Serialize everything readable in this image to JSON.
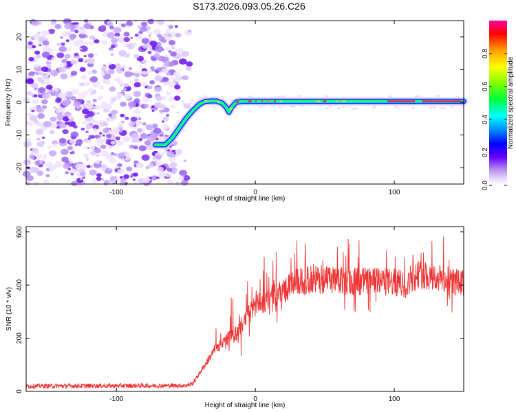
{
  "title": "S173.2026.093.05.26.C26",
  "chart_data": [
    {
      "type": "heatmap",
      "name": "spectrogram",
      "xlabel": "Height of straight line (km)",
      "ylabel": "Frequency (Hz)",
      "xlim": [
        -165,
        150
      ],
      "ylim": [
        -25,
        25
      ],
      "xticks": [
        -100,
        0,
        100
      ],
      "yticks": [
        -20,
        -10,
        0,
        10,
        20
      ],
      "colorbar": {
        "label": "Normalized spectral amplitude",
        "range": [
          0,
          1
        ],
        "ticks": [
          0.0,
          0.2,
          0.4,
          0.6,
          0.8
        ],
        "tick_labels": [
          "0.0",
          "0.2",
          "0.4",
          "0.6",
          "0.8"
        ]
      },
      "ridge": {
        "x": [
          -72,
          -65,
          -60,
          -55,
          -50,
          -45,
          -40,
          -36,
          -32,
          -28,
          -24,
          -21,
          -19,
          -17,
          -14,
          -10,
          -5,
          0,
          150
        ],
        "y": [
          -13,
          -13,
          -11,
          -8,
          -5,
          -2.5,
          -0.5,
          0.3,
          0.4,
          0.4,
          -0.2,
          -1.5,
          -3,
          -1.5,
          0,
          0.3,
          0.3,
          0.3,
          0.3
        ]
      },
      "noise_region_x": [
        -165,
        -55
      ]
    },
    {
      "type": "line",
      "name": "snr",
      "xlabel": "Height of straight line (km)",
      "ylabel": "SNR (10 * v/v)",
      "xlim": [
        -165,
        150
      ],
      "ylim": [
        0,
        620
      ],
      "xticks": [
        -100,
        0,
        100
      ],
      "yticks": [
        0,
        200,
        400,
        600
      ],
      "color": "#ee3333",
      "envelope": {
        "x": [
          -165,
          -50,
          -45,
          -40,
          -35,
          -30,
          -25,
          -20,
          -15,
          -10,
          -5,
          0,
          10,
          20,
          30,
          40,
          50,
          60,
          80,
          100,
          110,
          112,
          120,
          140,
          150
        ],
        "y": [
          20,
          22,
          30,
          70,
          110,
          150,
          180,
          200,
          210,
          250,
          290,
          320,
          350,
          380,
          410,
          420,
          420,
          415,
          415,
          410,
          400,
          430,
          440,
          415,
          405
        ]
      }
    }
  ]
}
